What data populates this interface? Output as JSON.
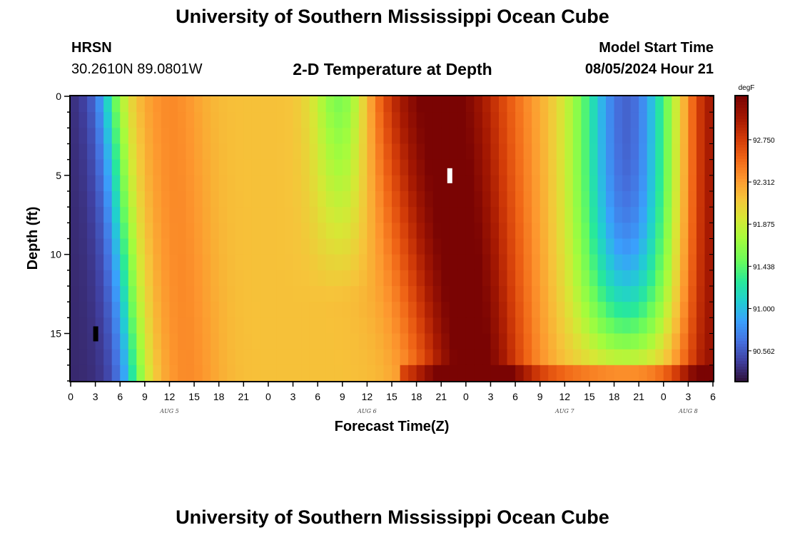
{
  "page": {
    "title_top": "University of Southern Mississippi Ocean Cube",
    "title_bottom": "University of Southern Mississippi Ocean Cube",
    "station_code": "HRSN",
    "station_coords": "30.2610N  89.0801W",
    "chart_title": "2-D Temperature at Depth",
    "model_start_label": "Model Start Time",
    "model_start_value": "08/05/2024 Hour 21"
  },
  "chart_data": {
    "type": "heatmap",
    "title": "2-D Temperature at Depth",
    "xlabel": "Forecast Time(Z)",
    "ylabel": "Depth (ft)",
    "x_range_hours": [
      0,
      78
    ],
    "y_range_ft": [
      0,
      18
    ],
    "x_ticks": [
      "0",
      "3",
      "6",
      "9",
      "12",
      "15",
      "18",
      "21",
      "0",
      "3",
      "6",
      "9",
      "12",
      "15",
      "18",
      "21",
      "0",
      "3",
      "6",
      "9",
      "12",
      "15",
      "18",
      "21",
      "0",
      "3",
      "6"
    ],
    "day_labels": [
      {
        "label": "AUG 5",
        "hour": 12
      },
      {
        "label": "AUG 6",
        "hour": 36
      },
      {
        "label": "AUG 7",
        "hour": 60
      },
      {
        "label": "AUG 8",
        "hour": 75
      }
    ],
    "y_ticks": [
      0,
      5,
      10,
      15
    ],
    "colorbar": {
      "unit": "degF",
      "min": 90.25,
      "max": 93.2,
      "tick_values": [
        90.562,
        91.0,
        91.438,
        91.875,
        92.312,
        92.75
      ],
      "tick_labels": [
        "90.562",
        "91.000",
        "91.438",
        "91.875",
        "92.312",
        "92.750"
      ]
    },
    "markers": [
      {
        "color": "#ffffff",
        "hour": 46,
        "depth_ft": 5
      },
      {
        "color": "#000000",
        "hour": 3,
        "depth_ft": 15
      }
    ],
    "grid": false
  }
}
